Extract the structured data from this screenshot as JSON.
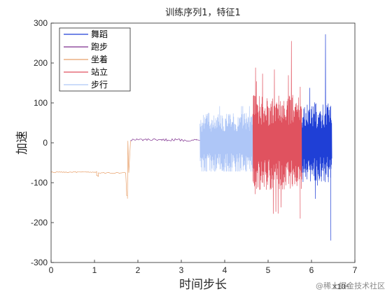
{
  "watermark": "@稀土掘金技术社区",
  "chart_data": {
    "type": "line",
    "title": "训练序列1，特征1",
    "xlabel": "时间步长",
    "ylabel": "加速",
    "x_exponent_label": "×10⁴",
    "xlim": [
      0,
      7
    ],
    "ylim": [
      -300,
      300
    ],
    "xticks": [
      0,
      1,
      2,
      3,
      4,
      5,
      6,
      7
    ],
    "yticks": [
      -300,
      -200,
      -100,
      0,
      100,
      200,
      300
    ],
    "legend_location": "top-left",
    "grid": false,
    "series": [
      {
        "name": "舞蹈",
        "color": "#1f3fd6",
        "x_range": [
          5.78,
          6.47
        ],
        "baseline": 0,
        "amplitude": 100,
        "peak": 272,
        "trough": -245
      },
      {
        "name": "跑步",
        "color": "#7e2f8e",
        "x_range": [
          1.83,
          3.43
        ],
        "baseline": 8,
        "amplitude": 3,
        "points": [
          [
            1.83,
            8
          ],
          [
            2.4,
            7
          ],
          [
            2.55,
            5
          ],
          [
            2.6,
            8
          ],
          [
            3.0,
            7
          ],
          [
            3.2,
            6
          ],
          [
            3.35,
            8
          ],
          [
            3.43,
            5
          ]
        ]
      },
      {
        "name": "坐着",
        "color": "#e8a06a",
        "x_range": [
          0,
          1.83
        ],
        "baseline": -73,
        "amplitude": 1.5,
        "points": [
          [
            0,
            -73
          ],
          [
            1.05,
            -74
          ],
          [
            1.07,
            -92
          ],
          [
            1.09,
            -74
          ],
          [
            1.72,
            -77
          ],
          [
            1.74,
            -125
          ],
          [
            1.76,
            -140
          ],
          [
            1.77,
            5
          ],
          [
            1.79,
            -75
          ],
          [
            1.83,
            5
          ]
        ]
      },
      {
        "name": "站立",
        "color": "#e0525f",
        "x_range": [
          4.65,
          5.78
        ],
        "baseline": 0,
        "amplitude": 120,
        "peak": 255,
        "trough": -190
      },
      {
        "name": "步行",
        "color": "#aec6f7",
        "x_range": [
          3.43,
          4.65
        ],
        "baseline": 0,
        "amplitude": 75,
        "peak": 92,
        "trough": -72
      }
    ]
  }
}
